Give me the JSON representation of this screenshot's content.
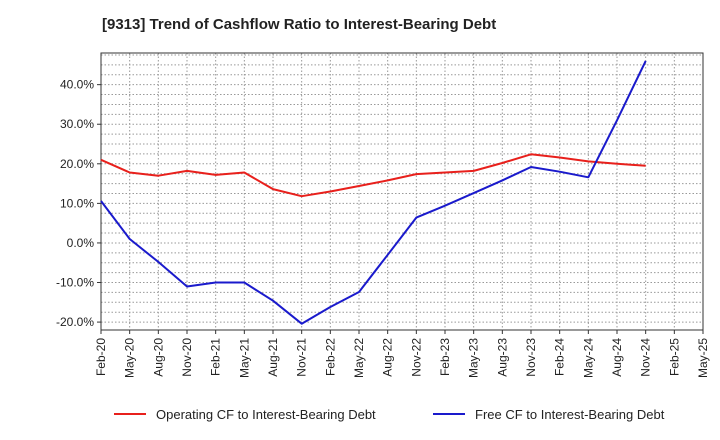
{
  "chart_data": {
    "type": "line",
    "title": "[9313]  Trend of Cashflow Ratio to Interest-Bearing Debt",
    "xlabel": "",
    "ylabel": "",
    "x_ticks": [
      "Feb-20",
      "May-20",
      "Aug-20",
      "Nov-20",
      "Feb-21",
      "May-21",
      "Aug-21",
      "Nov-21",
      "Feb-22",
      "May-22",
      "Aug-22",
      "Nov-22",
      "Feb-23",
      "May-23",
      "Aug-23",
      "Nov-23",
      "Feb-24",
      "May-24",
      "Aug-24",
      "Nov-24",
      "Feb-25",
      "May-25"
    ],
    "y_ticks": [
      "-20.0%",
      "-10.0%",
      "0.0%",
      "10.0%",
      "20.0%",
      "30.0%",
      "40.0%"
    ],
    "y_tick_values": [
      -20,
      -10,
      0,
      10,
      20,
      30,
      40
    ],
    "ylim": [
      -22,
      48
    ],
    "grid": true,
    "legend_position": "bottom",
    "series": [
      {
        "name": "Operating CF to Interest-Bearing Debt",
        "color": "#e8201c",
        "values": [
          21.0,
          17.8,
          17.0,
          18.2,
          17.2,
          17.8,
          13.6,
          11.8,
          13.0,
          14.4,
          15.8,
          17.4,
          17.8,
          18.2,
          20.2,
          22.4,
          21.6,
          20.6,
          20.0,
          19.5,
          null,
          null
        ]
      },
      {
        "name": "Free CF to Interest-Bearing Debt",
        "color": "#1a1acc",
        "values": [
          10.6,
          1.0,
          -4.8,
          -11.0,
          -10.0,
          -10.0,
          -14.6,
          -20.4,
          -16.2,
          -12.4,
          -3.0,
          6.4,
          9.4,
          12.6,
          15.8,
          19.2,
          18.0,
          16.6,
          31.0,
          46.0,
          null,
          null
        ]
      }
    ]
  }
}
